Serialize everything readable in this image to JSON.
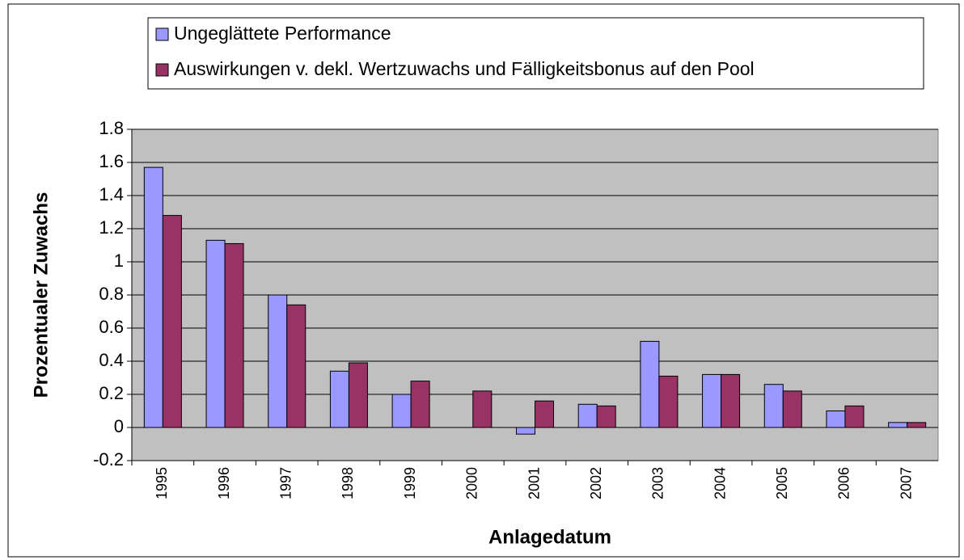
{
  "chart_data": {
    "type": "bar",
    "x_label": "Anlagedatum",
    "y_label": "Prozentualer Zuwachs",
    "categories": [
      "1995",
      "1996",
      "1997",
      "1998",
      "1999",
      "2000",
      "2001",
      "2002",
      "2003",
      "2004",
      "2005",
      "2006",
      "2007"
    ],
    "series": [
      {
        "name": "Ungeglättete Performance",
        "color": "#9999ff",
        "values": [
          1.57,
          1.13,
          0.8,
          0.34,
          0.2,
          0,
          -0.04,
          0.14,
          0.52,
          0.32,
          0.26,
          0.1,
          0.03
        ]
      },
      {
        "name": "Auswirkungen v. dekl. Wertzuwachs und Fälligkeitsbonus auf den Pool",
        "color": "#993366",
        "values": [
          1.28,
          1.11,
          0.74,
          0.39,
          0.28,
          0.22,
          0.16,
          0.13,
          0.31,
          0.32,
          0.22,
          0.13,
          0.03
        ]
      }
    ],
    "ylim": [
      -0.2,
      1.8
    ],
    "yticks": [
      -0.2,
      0,
      0.2,
      0.4,
      0.6,
      0.8,
      1,
      1.2,
      1.4,
      1.6,
      1.8
    ],
    "grid": true,
    "legend": "top"
  }
}
